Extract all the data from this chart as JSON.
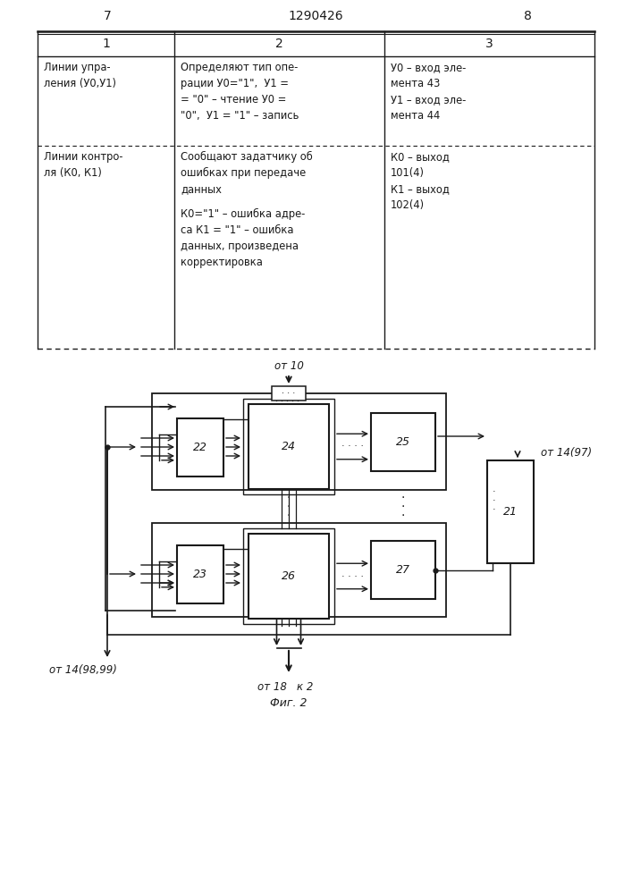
{
  "page_numbers": [
    "7",
    "1290426",
    "8"
  ],
  "table": {
    "col1_header": "1",
    "col2_header": "2",
    "col3_header": "3",
    "row1_col1": "Линии упра-\nления (У0,У1)",
    "row1_col2": "Определяют тип опе-\nрации У0=\"1\",  У1 =\n= \"0\" – чтение У0 =\n\"0\",  У1 = \"1\" – запись",
    "row1_col3": "У0 – вход эле-\nмента 43\nУ1 – вход эле-\nмента 44",
    "row2_col1": "Линии контро-\nля (К0, К1)",
    "row2_col2_a": "Сообщают задатчику об\nошибках при передаче\nданных",
    "row2_col2_b": "К0=\"1\" – ошибка адре-\nса К1 = \"1\" – ошибка\nданных, произведена\nкорректировка",
    "row2_col3": "К0 – выход\n101(4)\nК1 – выход\n102(4)"
  },
  "diagram": {
    "block22_label": "22",
    "block23_label": "23",
    "block24_label": "24",
    "block25_label": "25",
    "block26_label": "26",
    "block27_label": "27",
    "block21_label": "21",
    "label_ot10": "от 10",
    "label_ot14_97": "от 14(97)",
    "label_ot14_9899": "от 14(98,99)",
    "label_ot18": "от 18",
    "label_k2": "к 2",
    "label_fig2": "Фиг. 2"
  },
  "bg_color": "#ffffff",
  "line_color": "#1a1a1a",
  "text_color": "#1a1a1a"
}
